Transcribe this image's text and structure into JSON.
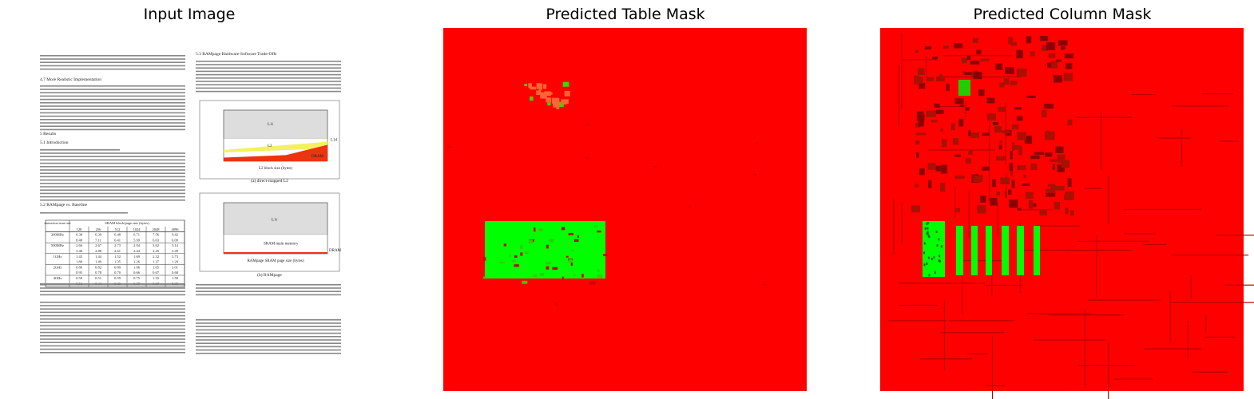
{
  "panels": [
    {
      "title": "Input Image"
    },
    {
      "title": "Predicted Table Mask"
    },
    {
      "title": "Predicted Column Mask"
    }
  ],
  "document": {
    "headings": [
      "4.7   More Realistic Implementation",
      "5   Results",
      "5.1   Introduction",
      "5.2   RAMpage vs. Baseline",
      "5.3   RAMpage Hardware-Software Trade-Offs"
    ],
    "table": {
      "header": [
        "instruction issue rate",
        "SRAM block/page size (bytes)"
      ],
      "sizes": [
        "128",
        "256",
        "512",
        "1024",
        "2048",
        "4096"
      ],
      "rows": [
        {
          "label": "200MHz",
          "values": [
            [
              "6.38",
              "6.39",
              "6.48",
              "6.71",
              "7.56",
              "9.42"
            ],
            [
              "8.48",
              "7.11",
              "6.41",
              "5.99",
              "6.03",
              "6.09"
            ]
          ]
        },
        {
          "label": "500MHz",
          "values": [
            [
              "2.66",
              "2.67",
              "2.73",
              "2.94",
              "3.62",
              "5.14"
            ],
            [
              "3.46",
              "2.88",
              "2.61",
              "2.44",
              "2.45",
              "2.49"
            ]
          ]
        },
        {
          "label": "1GHz",
          "values": [
            [
              "1.43",
              "1.44",
              "1.52",
              "1.69",
              "2.32",
              "3.73"
            ],
            [
              "1.80",
              "1.49",
              "1.35",
              "1.26",
              "1.27",
              "1.29"
            ]
          ]
        },
        {
          "label": "2GHz",
          "values": [
            [
              "0.80",
              "0.82",
              "0.89",
              "1.06",
              "1.65",
              "3.01"
            ],
            [
              "0.95",
              "0.78",
              "0.70",
              "0.66",
              "0.67",
              "0.68"
            ]
          ]
        },
        {
          "label": "4GHz",
          "values": [
            [
              "0.50",
              "0.51",
              "0.59",
              "0.75",
              "1.33",
              "1.59"
            ],
            [
              "0.53",
              "0.44",
              "0.39",
              "0.37",
              "0.37",
              "0.39"
            ]
          ]
        }
      ]
    },
    "figures": [
      {
        "caption": "(a) direct-mapped L2",
        "xlabel": "L2 block size (bytes)",
        "labels": [
          "L1i",
          "L2",
          "L1d",
          "DRAM"
        ]
      },
      {
        "caption": "(b) RAMpage",
        "xlabel": "RAMpage SRAM page size (bytes)",
        "labels": [
          "L1i",
          "SRAM main memory",
          "DRAM"
        ]
      }
    ]
  }
}
